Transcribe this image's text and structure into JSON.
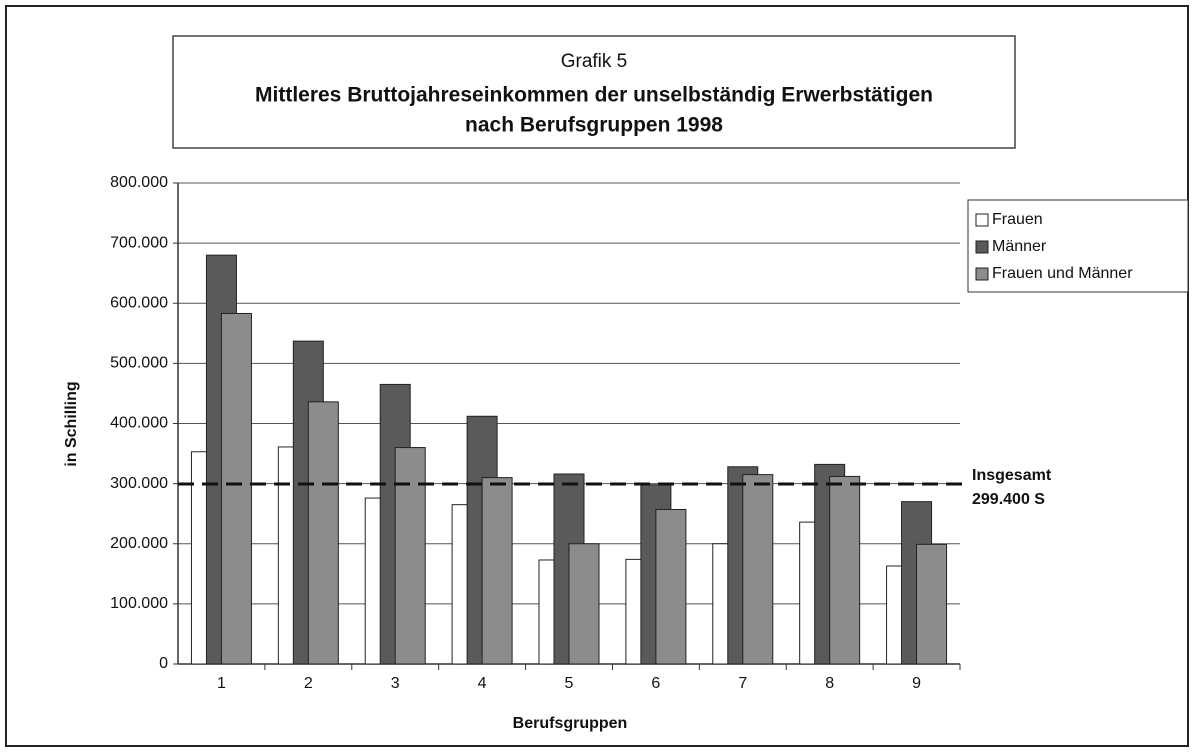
{
  "chart_data": {
    "type": "bar",
    "supertitle": "Grafik 5",
    "title": [
      "Mittleres Bruttojahreseinkommen der unselbständig Erwerbstätigen",
      "nach Berufsgruppen 1998"
    ],
    "y_label": "in Schilling",
    "x_label": "Berufsgruppen",
    "categories": [
      "1",
      "2",
      "3",
      "4",
      "5",
      "6",
      "7",
      "8",
      "9"
    ],
    "series": [
      {
        "name": "Frauen",
        "color": "#ffffff",
        "values": [
          353000,
          361000,
          276000,
          265000,
          173000,
          174000,
          200000,
          236000,
          163000
        ]
      },
      {
        "name": "Männer",
        "color": "#5a5a5a",
        "values": [
          680000,
          537000,
          465000,
          412000,
          316000,
          298000,
          328000,
          332000,
          270000
        ]
      },
      {
        "name": "Frauen und Männer",
        "color": "#8c8c8c",
        "values": [
          583000,
          436000,
          360000,
          310000,
          200000,
          257000,
          315000,
          312000,
          199000
        ]
      }
    ],
    "reference_line": {
      "value": 299400,
      "label": [
        "Insgesamt",
        "299.400 S"
      ]
    },
    "ylim": [
      0,
      800000
    ],
    "yticks": [
      0,
      {
        "value": 100000,
        "label": "100.000"
      },
      {
        "value": 200000,
        "label": "200.000"
      },
      {
        "value": 300000,
        "label": "300.000"
      },
      {
        "value": 400000,
        "label": "400.000"
      },
      {
        "value": 500000,
        "label": "500.000"
      },
      {
        "value": 600000,
        "label": "600.000"
      },
      {
        "value": 700000,
        "label": "700.000"
      },
      {
        "value": 800000,
        "label": "800.000"
      }
    ],
    "grid": true,
    "legend": "right"
  }
}
